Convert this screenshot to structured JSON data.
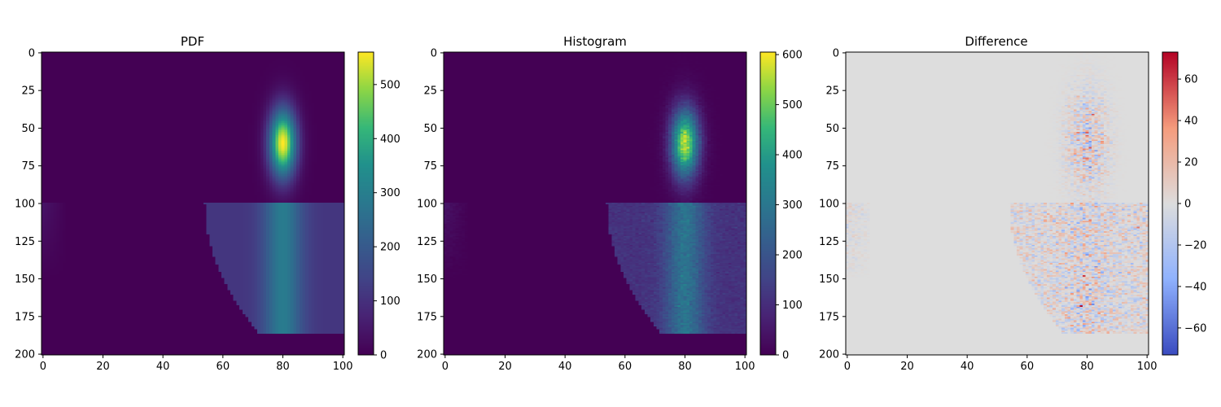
{
  "chart_data": [
    {
      "type": "heatmap",
      "title": "PDF",
      "xlim": [
        0,
        101
      ],
      "ylim": [
        201,
        0
      ],
      "x_ticks": [
        0,
        20,
        40,
        60,
        80,
        100
      ],
      "y_ticks": [
        0,
        25,
        50,
        75,
        100,
        125,
        150,
        175,
        200
      ],
      "colormap": "viridis",
      "colorbar": {
        "range": [
          0,
          560
        ],
        "ticks": [
          0,
          100,
          200,
          300,
          400,
          500
        ]
      },
      "features": {
        "gaussian_peak": {
          "x": 80,
          "y": 60,
          "max": 560,
          "sigma_x": 3.2,
          "sigma_y": 16
        },
        "split_row": 100,
        "lower_band": {
          "x_center": 80,
          "sigma_x": 4.5,
          "level": 290
        },
        "lower_right_region": {
          "x_from": 54,
          "level": 110,
          "bottom_row": 186
        },
        "left_edge_level": 40
      }
    },
    {
      "type": "heatmap",
      "title": "Histogram",
      "xlim": [
        0,
        101
      ],
      "ylim": [
        201,
        0
      ],
      "x_ticks": [
        0,
        20,
        40,
        60,
        80,
        100
      ],
      "y_ticks": [
        0,
        25,
        50,
        75,
        100,
        125,
        150,
        175,
        200
      ],
      "colormap": "viridis",
      "colorbar": {
        "range": [
          0,
          605
        ],
        "ticks": [
          0,
          100,
          200,
          300,
          400,
          500,
          600
        ]
      },
      "features": {
        "gaussian_peak": {
          "x": 80,
          "y": 60,
          "max": 600,
          "sigma_x": 3.2,
          "sigma_y": 16
        },
        "split_row": 100,
        "noise": "poisson-like"
      }
    },
    {
      "type": "heatmap",
      "title": "Difference",
      "xlim": [
        0,
        101
      ],
      "ylim": [
        201,
        0
      ],
      "x_ticks": [
        0,
        20,
        40,
        60,
        80,
        100
      ],
      "y_ticks": [
        0,
        25,
        50,
        75,
        100,
        125,
        150,
        175,
        200
      ],
      "colormap": "coolwarm",
      "colorbar": {
        "range": [
          -73,
          73
        ],
        "ticks": [
          -60,
          -40,
          -20,
          0,
          20,
          40,
          60
        ]
      },
      "features": {
        "zero_color": "#dddddd"
      }
    }
  ]
}
